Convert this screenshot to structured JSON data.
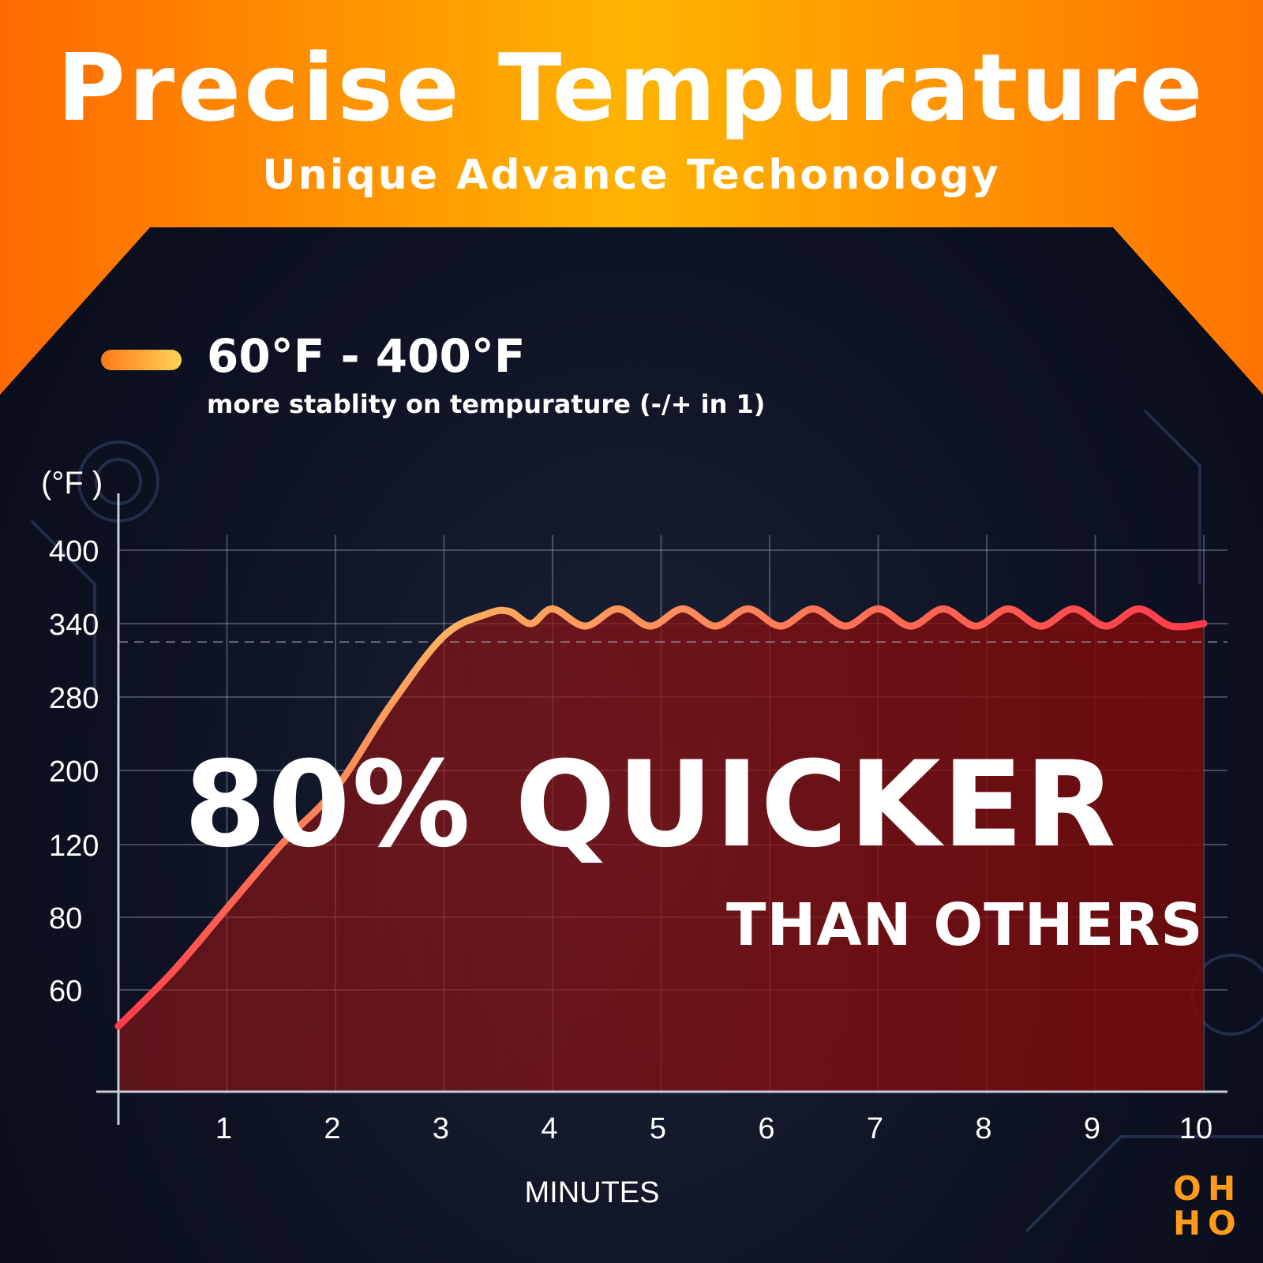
{
  "header": {
    "title": "Precise Tempurature",
    "subtitle": "Unique Advance Techonology"
  },
  "legend": {
    "label": "60°F - 400°F",
    "description": "more stablity on tempurature (-/+ in 1)"
  },
  "claim": {
    "main": "80% QUICKER",
    "sub": "THAN OTHERS"
  },
  "brand": {
    "logo_text": "OH HO"
  },
  "colors": {
    "header_orange": "#ff8a00",
    "curve_start": "#ff3b4a",
    "curve_mid": "#ffb060",
    "area_red": "#8a1010"
  },
  "chart_data": {
    "type": "line",
    "title": "",
    "xlabel": "MINUTES",
    "ylabel": "(°F )",
    "x_ticks": [
      "1",
      "2",
      "3",
      "4",
      "5",
      "6",
      "7",
      "8",
      "9",
      "10"
    ],
    "y_ticks": [
      "60",
      "80",
      "120",
      "200",
      "280",
      "340",
      "400"
    ],
    "y_tick_values": [
      60,
      80,
      120,
      200,
      280,
      340,
      400
    ],
    "grid": true,
    "series": [
      {
        "name": "60°F - 400°F",
        "x": [
          0,
          0.5,
          1,
          1.5,
          2,
          2.5,
          3,
          3.4,
          3.6,
          3.8,
          4.0,
          4.3,
          4.6,
          4.9,
          5.2,
          5.5,
          5.8,
          6.1,
          6.4,
          6.7,
          7.0,
          7.3,
          7.6,
          7.9,
          8.2,
          8.5,
          8.8,
          9.1,
          9.4,
          9.7,
          10.0
        ],
        "y": [
          50,
          65,
          85,
          120,
          180,
          270,
          330,
          348,
          350,
          340,
          352,
          338,
          352,
          338,
          352,
          338,
          352,
          338,
          352,
          338,
          352,
          338,
          352,
          338,
          352,
          338,
          352,
          338,
          352,
          338,
          340
        ]
      }
    ],
    "reference_line": 325
  }
}
